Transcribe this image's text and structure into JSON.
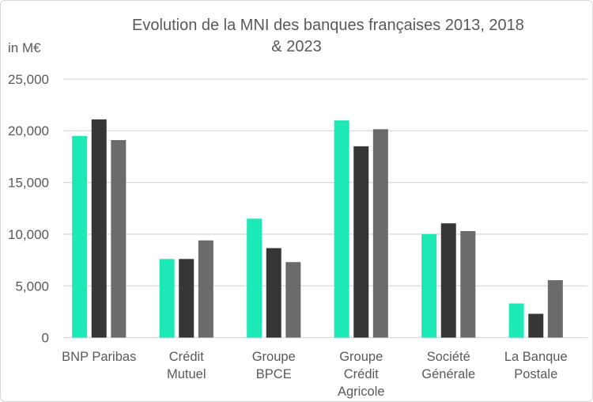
{
  "chart_data": {
    "type": "bar",
    "title_lines": [
      "Evolution de la MNI des banques françaises 2013, 2018",
      "& 2023"
    ],
    "ylabel": "in M€",
    "xlabel": "",
    "ylim": [
      0,
      25000
    ],
    "yticks": [
      0,
      5000,
      10000,
      15000,
      20000,
      25000
    ],
    "ytick_labels": [
      "0",
      "5,000",
      "10,000",
      "15,000",
      "20,000",
      "25,000"
    ],
    "grid": true,
    "legend": "none",
    "categories": [
      [
        "BNP Paribas"
      ],
      [
        "Crédit",
        "Mutuel"
      ],
      [
        "Groupe",
        "BPCE"
      ],
      [
        "Groupe",
        "Crédit",
        "Agricole"
      ],
      [
        "Société",
        "Générale"
      ],
      [
        "La Banque",
        "Postale"
      ]
    ],
    "series": [
      {
        "color": "#1de9b6",
        "values": [
          19500,
          7600,
          11500,
          21000,
          10000,
          3300
        ]
      },
      {
        "color": "#363636",
        "values": [
          21100,
          7600,
          8650,
          18500,
          11050,
          2300
        ]
      },
      {
        "color": "#6b6b6b",
        "values": [
          19100,
          9400,
          7300,
          20150,
          10300,
          5550
        ]
      }
    ]
  }
}
